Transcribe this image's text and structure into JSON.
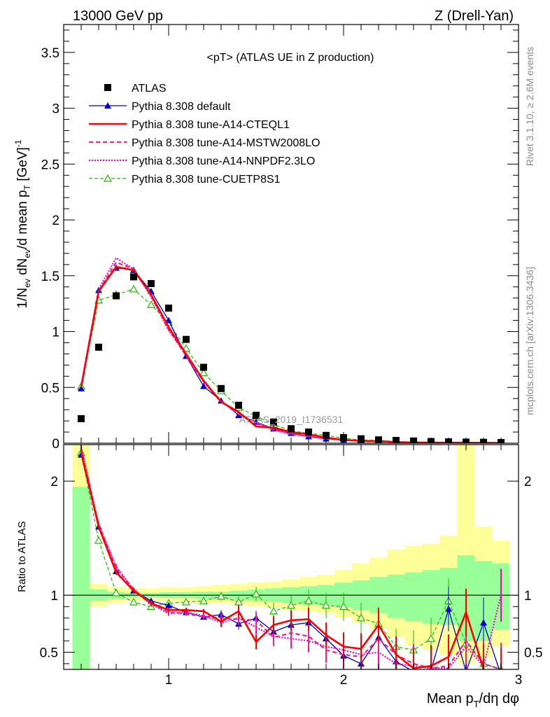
{
  "header": {
    "left": "13000 GeV pp",
    "right": "Z (Drell-Yan)"
  },
  "side_labels": {
    "rivet": "Rivet 3.1.10, ≥ 2.6M events",
    "mcplots": "mcplots.cern.ch [arXiv:1306.3436]"
  },
  "watermark": "ATLAS_2019_I1736531",
  "chart_data": [
    {
      "type": "line",
      "panel": "main",
      "title": "<pT> (ATLAS UE in Z production)",
      "ylabel": "1/N_ev dN_ev/d mean p_T [GeV]^-1",
      "xlim": [
        0.4,
        3.0
      ],
      "ylim": [
        0,
        3.75
      ],
      "y_ticks": [
        0,
        0.5,
        1,
        1.5,
        2,
        2.5,
        3,
        3.5
      ],
      "y_tick_labels": [
        "0",
        "0.5",
        "1",
        "1.5",
        "2",
        "2.5",
        "3",
        "3.5"
      ],
      "grid": false,
      "legend_position": "top-left",
      "x": [
        0.5,
        0.6,
        0.7,
        0.8,
        0.9,
        1.0,
        1.1,
        1.2,
        1.3,
        1.4,
        1.5,
        1.6,
        1.7,
        1.8,
        1.9,
        2.0,
        2.1,
        2.2,
        2.3,
        2.4,
        2.5,
        2.6,
        2.7,
        2.8,
        2.9
      ],
      "series": [
        {
          "name": "ATLAS",
          "style": "data",
          "color": "#000000",
          "values": [
            0.22,
            0.86,
            1.32,
            1.49,
            1.43,
            1.21,
            0.93,
            0.68,
            0.49,
            0.34,
            0.25,
            0.19,
            0.13,
            0.1,
            0.07,
            0.05,
            0.04,
            0.03,
            0.025,
            0.02,
            0.015,
            0.012,
            0.01,
            0.008,
            0.006
          ]
        },
        {
          "name": "Pythia 8.308 default",
          "style": "blue-triangle",
          "color": "#0000cc",
          "values": [
            0.49,
            1.37,
            1.57,
            1.55,
            1.36,
            1.1,
            0.78,
            0.51,
            0.38,
            0.25,
            0.19,
            0.13,
            0.09,
            0.06,
            0.04,
            0.03,
            0.02,
            0.015,
            0.01,
            0.008,
            0.005,
            0.005,
            0.005,
            0.004,
            0.003
          ]
        },
        {
          "name": "Pythia 8.308 tune-A14-CTEQL1",
          "style": "red-solid",
          "color": "#ff0000",
          "values": [
            0.5,
            1.36,
            1.58,
            1.55,
            1.33,
            1.04,
            0.8,
            0.56,
            0.37,
            0.28,
            0.15,
            0.14,
            0.1,
            0.08,
            0.05,
            0.03,
            0.02,
            0.02,
            0.01,
            0.007,
            0.006,
            0.005,
            0.005,
            0.004,
            0.003
          ]
        },
        {
          "name": "Pythia 8.308 tune-A14-MSTW2008LO",
          "style": "magenta-dashed",
          "color": "#ee2288",
          "values": [
            0.51,
            1.36,
            1.62,
            1.56,
            1.32,
            1.02,
            0.78,
            0.55,
            0.38,
            0.26,
            0.19,
            0.12,
            0.09,
            0.06,
            0.04,
            0.03,
            0.02,
            0.015,
            0.01,
            0.008,
            0.005,
            0.004,
            0.004,
            0.003,
            0.003
          ]
        },
        {
          "name": "Pythia 8.308 tune-A14-NNPDF2.3LO",
          "style": "magenta-dotted",
          "color": "#ff00cc",
          "values": [
            0.52,
            1.38,
            1.66,
            1.56,
            1.31,
            1.01,
            0.79,
            0.55,
            0.37,
            0.27,
            0.18,
            0.12,
            0.08,
            0.06,
            0.04,
            0.03,
            0.02,
            0.015,
            0.01,
            0.007,
            0.005,
            0.004,
            0.004,
            0.003,
            0.003
          ]
        },
        {
          "name": "Pythia 8.308 tune-CUETP8S1",
          "style": "green-dashed",
          "color": "#22bb00",
          "values": [
            0.51,
            1.28,
            1.33,
            1.38,
            1.24,
            1.08,
            0.85,
            0.63,
            0.47,
            0.32,
            0.24,
            0.17,
            0.11,
            0.09,
            0.07,
            0.045,
            0.03,
            0.025,
            0.015,
            0.01,
            0.008,
            0.006,
            0.005,
            0.004,
            0.003
          ]
        }
      ]
    },
    {
      "type": "line",
      "panel": "ratio",
      "ylabel": "Ratio to ATLAS",
      "xlabel": "Mean p_T/dη dφ",
      "xlim": [
        0.4,
        3.0
      ],
      "ylim": [
        0.35,
        2.32
      ],
      "reference_line": 1,
      "x_ticks": [
        1,
        2,
        3
      ],
      "x_tick_labels": [
        "1",
        "2",
        "3"
      ],
      "y_ticks": [
        0.5,
        1,
        2
      ],
      "y_tick_labels": [
        "0.5",
        "1",
        "2"
      ],
      "grid": false,
      "bands": {
        "x_edges": [
          0.45,
          0.55,
          0.65,
          0.75,
          0.85,
          0.95,
          1.05,
          1.15,
          1.25,
          1.35,
          1.45,
          1.55,
          1.65,
          1.75,
          1.85,
          1.95,
          2.05,
          2.15,
          2.25,
          2.35,
          2.45,
          2.55,
          2.65,
          2.75,
          2.85,
          2.95
        ],
        "green_low": [
          0.3,
          0.95,
          0.97,
          0.98,
          0.98,
          0.975,
          0.975,
          0.97,
          0.97,
          0.96,
          0.95,
          0.94,
          0.93,
          0.92,
          0.91,
          0.89,
          0.87,
          0.84,
          0.8,
          0.77,
          0.75,
          0.74,
          0.6,
          0.6,
          0.7
        ],
        "green_high": [
          1.95,
          1.05,
          1.03,
          1.02,
          1.02,
          1.025,
          1.025,
          1.03,
          1.03,
          1.04,
          1.05,
          1.06,
          1.07,
          1.08,
          1.09,
          1.11,
          1.13,
          1.16,
          1.18,
          1.2,
          1.22,
          1.24,
          1.35,
          1.3,
          1.28
        ],
        "yellow_low": [
          0.3,
          0.9,
          0.93,
          0.95,
          0.95,
          0.94,
          0.94,
          0.93,
          0.93,
          0.92,
          0.9,
          0.89,
          0.87,
          0.86,
          0.84,
          0.81,
          0.76,
          0.71,
          0.63,
          0.56,
          0.52,
          0.48,
          0.4,
          0.45,
          0.55
        ],
        "yellow_high": [
          2.32,
          1.1,
          1.07,
          1.06,
          1.06,
          1.07,
          1.07,
          1.08,
          1.09,
          1.1,
          1.11,
          1.12,
          1.14,
          1.16,
          1.18,
          1.22,
          1.28,
          1.33,
          1.4,
          1.43,
          1.45,
          1.52,
          2.32,
          1.6,
          1.48
        ]
      },
      "x": [
        0.5,
        0.6,
        0.7,
        0.8,
        0.9,
        1.0,
        1.1,
        1.2,
        1.3,
        1.4,
        1.5,
        1.6,
        1.7,
        1.8,
        1.9,
        2.0,
        2.1,
        2.2,
        2.3,
        2.4,
        2.5,
        2.6,
        2.7,
        2.8,
        2.9
      ],
      "series": [
        {
          "name": "Pythia 8.308 default",
          "color": "#0000cc",
          "values": [
            2.23,
            1.6,
            1.21,
            1.04,
            0.95,
            0.91,
            0.85,
            0.81,
            0.83,
            0.75,
            0.8,
            0.68,
            0.74,
            0.76,
            0.62,
            0.47,
            0.4,
            0.63,
            0.42,
            0.33,
            0.34,
            0.88,
            0.33,
            0.76,
            0.3
          ]
        },
        {
          "name": "Pythia 8.308 tune-A14-CTEQL1",
          "color": "#ff0000",
          "values": [
            2.25,
            1.6,
            1.2,
            1.04,
            0.93,
            0.87,
            0.87,
            0.86,
            0.77,
            0.86,
            0.59,
            0.74,
            0.78,
            0.79,
            0.65,
            0.55,
            0.53,
            0.74,
            0.48,
            0.36,
            0.38,
            0.46,
            0.85,
            0.35,
            0.3
          ]
        },
        {
          "name": "Pythia 8.308 tune-A14-MSTW2008LO",
          "color": "#ee2288",
          "values": [
            2.28,
            1.62,
            1.24,
            1.05,
            0.93,
            0.85,
            0.84,
            0.81,
            0.8,
            0.79,
            0.78,
            0.63,
            0.67,
            0.64,
            0.52,
            0.48,
            0.46,
            0.62,
            0.48,
            0.4,
            0.36,
            0.38,
            0.6,
            0.4,
            0.35
          ]
        },
        {
          "name": "Pythia 8.308 tune-A14-NNPDF2.3LO",
          "color": "#ff00cc",
          "values": [
            2.3,
            1.62,
            1.25,
            1.05,
            0.92,
            0.84,
            0.85,
            0.82,
            0.76,
            0.8,
            0.72,
            0.64,
            0.62,
            0.6,
            0.55,
            0.52,
            0.48,
            0.5,
            0.4,
            0.38,
            0.36,
            0.36,
            0.55,
            0.38,
            1.0
          ]
        },
        {
          "name": "Pythia 8.308 tune-CUETP8S1",
          "color": "#22bb00",
          "values": [
            2.25,
            1.48,
            1.02,
            0.94,
            0.9,
            0.93,
            0.94,
            0.95,
            0.99,
            0.94,
            1.01,
            0.86,
            0.91,
            0.95,
            0.91,
            0.9,
            0.8,
            0.75,
            0.55,
            0.52,
            0.62,
            0.95,
            0.58,
            0.4,
            0.35
          ]
        }
      ]
    }
  ]
}
